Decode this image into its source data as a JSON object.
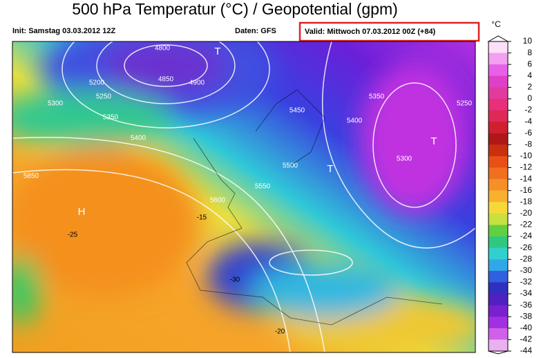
{
  "header": {
    "title": "500 hPa Temperatur (°C) / Geopotential (gpm)",
    "init": "Init: Samstag 03.03.2012 12Z",
    "source": "Daten: GFS",
    "valid": "Valid: Mittwoch 07.03.2012 00Z (+84)"
  },
  "colorbar": {
    "unit": "°C",
    "labels": [
      "10",
      "8",
      "6",
      "4",
      "2",
      "0",
      "-2",
      "-4",
      "-6",
      "-8",
      "-10",
      "-12",
      "-14",
      "-16",
      "-18",
      "-20",
      "-22",
      "-24",
      "-26",
      "-28",
      "-30",
      "-32",
      "-34",
      "-36",
      "-38",
      "-40",
      "-42",
      "-44"
    ]
  },
  "map": {
    "labels": [
      "4800",
      "4850",
      "4900",
      "5200",
      "5250",
      "5300",
      "5350",
      "5400",
      "5450",
      "5500",
      "5550",
      "5600",
      "5850",
      "H",
      "T",
      "T",
      "T",
      "-15",
      "-20",
      "-25",
      "-30",
      "5300",
      "5350",
      "5400",
      "5250"
    ]
  }
}
